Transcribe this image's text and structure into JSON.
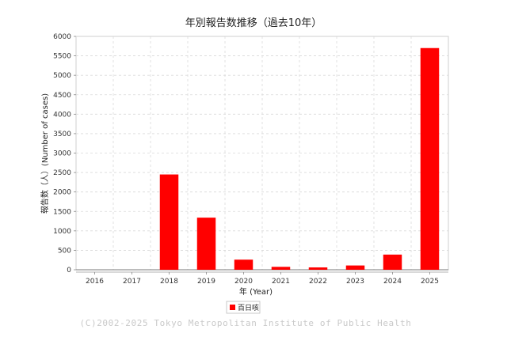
{
  "chart_data": {
    "type": "bar",
    "title": "年別報告数推移（過去10年）",
    "xlabel": "年 (Year)",
    "ylabel": "報告数（人）(Number of cases)",
    "categories": [
      "2016",
      "2017",
      "2018",
      "2019",
      "2020",
      "2021",
      "2022",
      "2023",
      "2024",
      "2025"
    ],
    "series": [
      {
        "name": "百日咳",
        "color": "#ff0000",
        "values": [
          0,
          0,
          2450,
          1340,
          260,
          75,
          60,
          110,
          390,
          5700
        ]
      }
    ],
    "ylim": [
      0,
      6000
    ],
    "yticks": [
      0,
      500,
      1000,
      1500,
      2000,
      2500,
      3000,
      3500,
      4000,
      4500,
      5000,
      5500,
      6000
    ],
    "grid": true,
    "legend_position": "bottom-center"
  },
  "footer": {
    "copyright": "(C)2002-2025 Tokyo Metropolitan Institute of Public Health"
  }
}
